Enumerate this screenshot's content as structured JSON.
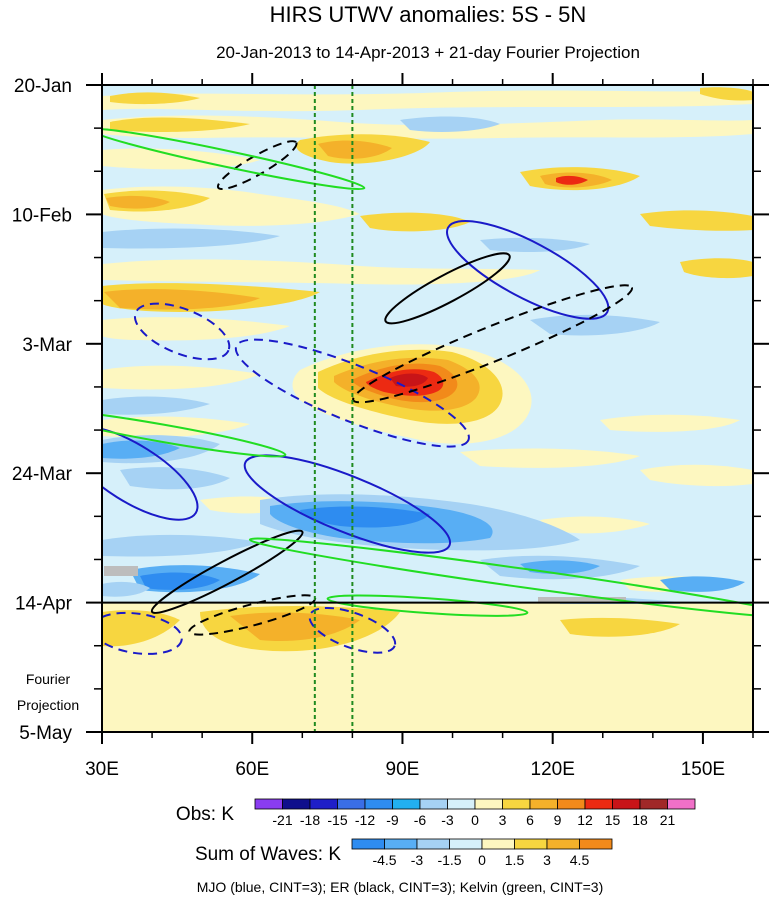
{
  "chart_data": {
    "type": "heatmap",
    "title": "HIRS UTWV anomalies: 5S - 5N",
    "subtitle": "20-Jan-2013 to 14-Apr-2013 + 21-day Fourier Projection",
    "x_range": [
      30,
      160
    ],
    "x_ticks": [
      {
        "value": 30,
        "label": "30E"
      },
      {
        "value": 60,
        "label": "60E"
      },
      {
        "value": 90,
        "label": "90E"
      },
      {
        "value": 120,
        "label": "120E"
      },
      {
        "value": 150,
        "label": "150E"
      }
    ],
    "y_range_days": [
      0,
      105
    ],
    "y_ticks": [
      {
        "day": 0,
        "label": "20-Jan"
      },
      {
        "day": 21,
        "label": "10-Feb"
      },
      {
        "day": 42,
        "label": "3-Mar"
      },
      {
        "day": 63,
        "label": "24-Mar"
      },
      {
        "day": 84,
        "label": "14-Apr"
      },
      {
        "day": 105,
        "label": "5-May"
      }
    ],
    "projection_label": [
      "Fourier",
      "Projection"
    ],
    "observation_end_day": 84,
    "reference_longitudes": [
      72.5,
      80
    ],
    "obs_legend": {
      "label": "Obs: K",
      "levels": [
        "-21",
        "-18",
        "-15",
        "-12",
        "-9",
        "-6",
        "-3",
        "0",
        "3",
        "6",
        "9",
        "12",
        "15",
        "18",
        "21"
      ],
      "colors": [
        "#8a3cf0",
        "#0f0f8c",
        "#1f1fc8",
        "#3a6ee6",
        "#2e8cf0",
        "#22b0f0",
        "#a6d2f4",
        "#d6f0fa",
        "#fdf7c0",
        "#f7d640",
        "#f4b12a",
        "#f28a1a",
        "#ec2a12",
        "#c81418",
        "#a02828",
        "#f070c8"
      ]
    },
    "wave_legend": {
      "label": "Sum of Waves: K",
      "levels": [
        "-4.5",
        "-3",
        "-1.5",
        "0",
        "1.5",
        "3",
        "4.5"
      ],
      "colors": [
        "#2e8cf0",
        "#58aef4",
        "#a6d2f4",
        "#d6f0fa",
        "#fdf7c0",
        "#f7d640",
        "#f4b12a",
        "#f28a1a"
      ]
    },
    "contour_note": "MJO (blue, CINT=3); ER (black, CINT=3); Kelvin (green, CINT=3)",
    "series": [
      {
        "name": "MJO",
        "color": "#1a1ac8",
        "contours": [
          {
            "center": [
              115,
              30
            ],
            "radius": [
              18,
              4.5
            ],
            "angle": 28,
            "dash": false
          },
          {
            "center": [
              46,
              40
            ],
            "radius": [
              10,
              3.6
            ],
            "angle": 22,
            "dash": true
          },
          {
            "center": [
              80,
              50
            ],
            "radius": [
              25,
              4.5
            ],
            "angle": 22,
            "dash": true
          },
          {
            "center": [
              36,
              63
            ],
            "radius": [
              15,
              4.6
            ],
            "angle": 32,
            "dash": false
          },
          {
            "center": [
              79,
              68
            ],
            "radius": [
              22,
              4.5
            ],
            "angle": 22,
            "dash": false
          },
          {
            "center": [
              37,
              89
            ],
            "radius": [
              9,
              3.2
            ],
            "angle": 8,
            "dash": true
          },
          {
            "center": [
              80,
              88.5
            ],
            "radius": [
              9,
              2.8
            ],
            "angle": 20,
            "dash": true
          }
        ]
      },
      {
        "name": "ER",
        "color": "#000000",
        "contours": [
          {
            "center": [
              61,
              13
            ],
            "radius": [
              9,
              1.5
            ],
            "angle": -30,
            "dash": true
          },
          {
            "center": [
              99,
              33
            ],
            "radius": [
              14,
              2.2
            ],
            "angle": -28,
            "dash": false
          },
          {
            "center": [
              108,
              42
            ],
            "radius": [
              30,
              2.8
            ],
            "angle": -22,
            "dash": true
          },
          {
            "center": [
              55,
              79
            ],
            "radius": [
              17,
              1.8
            ],
            "angle": -28,
            "dash": false
          },
          {
            "center": [
              60,
              86
            ],
            "radius": [
              13,
              1.7
            ],
            "angle": -15,
            "dash": true
          }
        ]
      },
      {
        "name": "Kelvin",
        "color": "#22dd22",
        "contours": [
          {
            "center": [
              55,
              12
            ],
            "radius": [
              28,
              1.3
            ],
            "angle": 12,
            "dash": false
          },
          {
            "center": [
              42,
              56.5
            ],
            "radius": [
              25,
              1.4
            ],
            "angle": 10,
            "dash": false
          },
          {
            "center": [
              114,
              80
            ],
            "radius": [
              55,
              1.5
            ],
            "angle": 8,
            "dash": false
          },
          {
            "center": [
              95,
              84.5
            ],
            "radius": [
              20,
              1.2
            ],
            "angle": 4,
            "dash": false
          }
        ]
      }
    ]
  }
}
